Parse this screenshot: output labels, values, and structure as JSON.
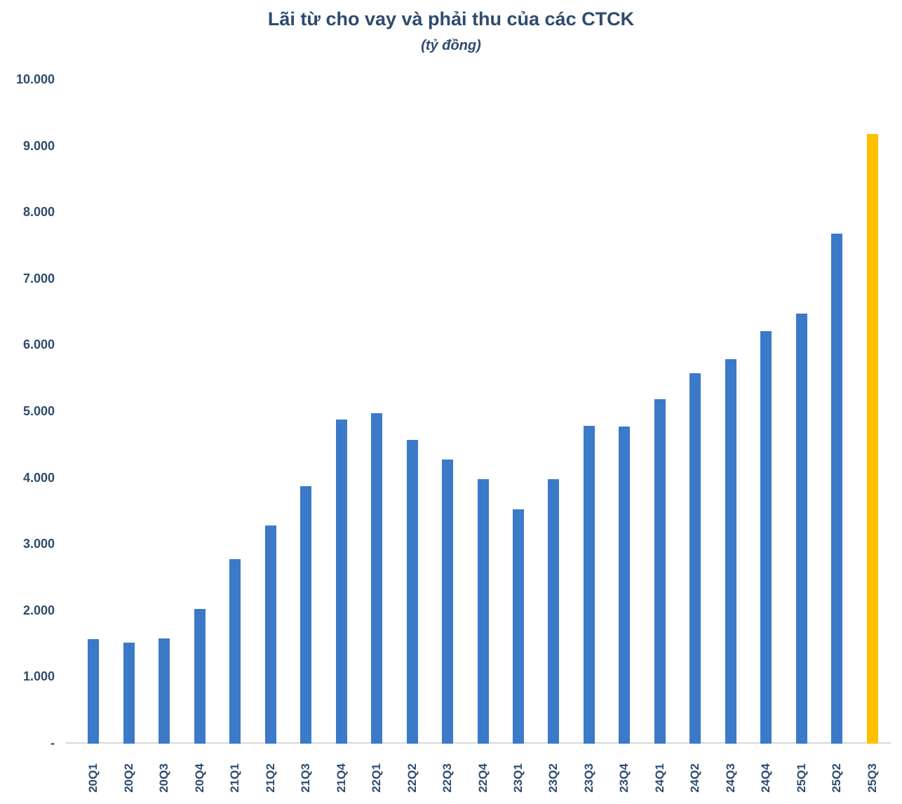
{
  "header": {
    "title": "Lãi từ cho vay và phải thu của các CTCK",
    "subtitle": "(tỷ đồng)"
  },
  "colors": {
    "bar_default": "#3B7AC9",
    "bar_highlight": "#FFC000",
    "text": "#2E4B6E",
    "axis_line": "#D9D9D9"
  },
  "chart_data": {
    "type": "bar",
    "title": "Lãi từ cho vay và phải thu của các CTCK",
    "subtitle_unit": "tỷ đồng",
    "categories": [
      "20Q1",
      "20Q2",
      "20Q3",
      "20Q4",
      "21Q1",
      "21Q2",
      "21Q3",
      "21Q4",
      "22Q1",
      "22Q2",
      "22Q3",
      "22Q4",
      "23Q1",
      "23Q2",
      "23Q3",
      "23Q4",
      "24Q1",
      "24Q2",
      "24Q3",
      "24Q4",
      "25Q1",
      "25Q2",
      "25Q3"
    ],
    "values": [
      1580,
      1520,
      1590,
      2030,
      2780,
      3290,
      3880,
      4880,
      4980,
      4580,
      4280,
      3990,
      3530,
      3990,
      4790,
      4780,
      5190,
      5580,
      5790,
      6220,
      6480,
      7690,
      9190
    ],
    "highlight_index": 22,
    "highlight_category": "25Q3",
    "ylim": [
      0,
      10000
    ],
    "yticks": [
      {
        "label": "10.000",
        "value": 10000
      },
      {
        "label": "9.000",
        "value": 9000
      },
      {
        "label": "8.000",
        "value": 8000
      },
      {
        "label": "7.000",
        "value": 7000
      },
      {
        "label": "6.000",
        "value": 6000
      },
      {
        "label": "5.000",
        "value": 5000
      },
      {
        "label": "4.000",
        "value": 4000
      },
      {
        "label": "3.000",
        "value": 3000
      },
      {
        "label": "2.000",
        "value": 2000
      },
      {
        "label": "1.000",
        "value": 1000
      },
      {
        "label": "-",
        "value": 0
      }
    ],
    "grid": false,
    "legend": "none",
    "xlabel_rotation_deg": -90
  }
}
